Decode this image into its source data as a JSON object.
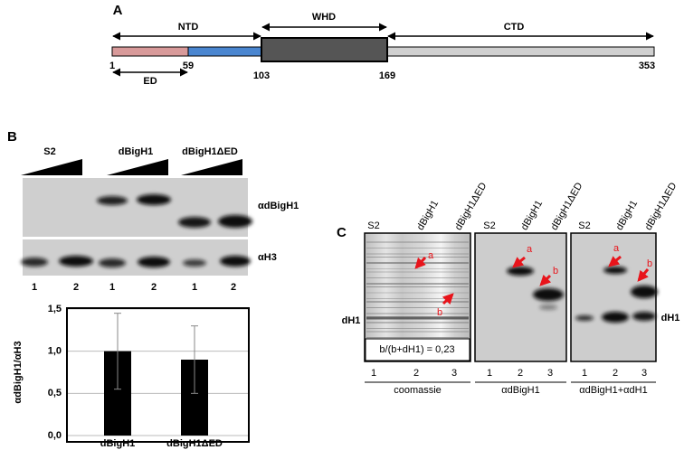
{
  "panel_a": {
    "label": "A",
    "domains": {
      "ntd": "NTD",
      "whd": "WHD",
      "ctd": "CTD",
      "ed": "ED"
    },
    "positions": [
      "1",
      "59",
      "103",
      "169",
      "353"
    ]
  },
  "panel_b": {
    "label": "B",
    "groups": [
      "S2",
      "dBigH1",
      "dBigH1ΔED"
    ],
    "antibodies": [
      "αdBigH1",
      "αH3"
    ],
    "lanes": [
      "1",
      "2",
      "1",
      "2",
      "1",
      "2"
    ]
  },
  "chart_data": {
    "type": "bar",
    "y_label": "αdBigH1/αH3",
    "categories": [
      "dBigH1",
      "dBigH1ΔED"
    ],
    "values": [
      1.0,
      0.9
    ],
    "errors": [
      0.45,
      0.4
    ],
    "color": "#000000",
    "ylim": [
      0,
      1.5
    ],
    "yticks": [
      {
        "value": 0,
        "label": "0,0"
      },
      {
        "value": 0.5,
        "label": "0,5"
      },
      {
        "value": 1,
        "label": "1,0"
      },
      {
        "value": 1.5,
        "label": "1,5"
      }
    ],
    "grid": true
  },
  "panel_c": {
    "label": "C",
    "columns": [
      "S2",
      "dBigH1",
      "dBigH1ΔED"
    ],
    "blots": [
      {
        "name": "coomassie",
        "lanes": [
          "1",
          "2",
          "3"
        ]
      },
      {
        "name": "αdBigH1",
        "lanes": [
          "1",
          "2",
          "3"
        ]
      },
      {
        "name": "αdBigH1+αdH1",
        "lanes": [
          "1",
          "2",
          "3"
        ]
      }
    ],
    "band_label": "dH1",
    "marks": [
      "a",
      "b"
    ],
    "ratio": "b/(b+dH1) = 0,23"
  }
}
